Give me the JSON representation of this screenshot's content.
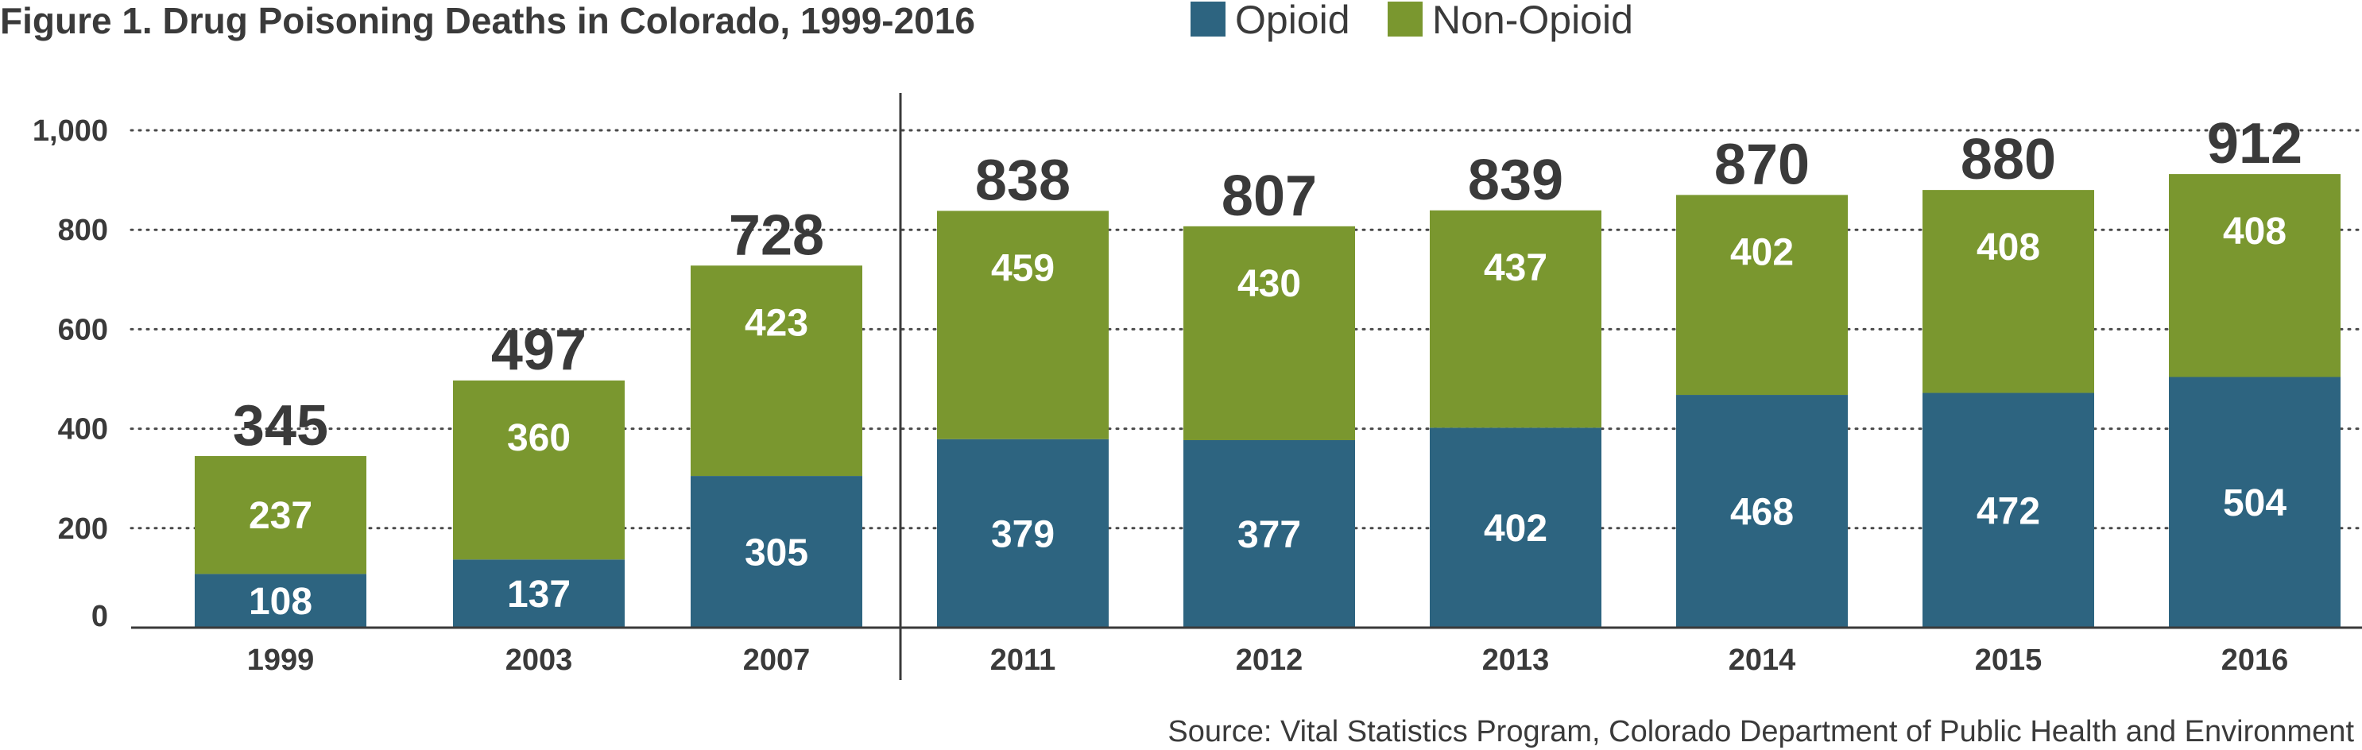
{
  "title": "Figure 1. Drug Poisoning Deaths in Colorado, 1999-2016",
  "source": "Source: Vital Statistics Program, Colorado Department of Public Health and Environment",
  "colors": {
    "opioid": "#2d6480",
    "non_opioid": "#7a972f",
    "text": "#3a3a3a"
  },
  "chart_data": {
    "type": "bar",
    "stacked": true,
    "title": "Figure 1. Drug Poisoning Deaths in Colorado, 1999-2016",
    "categories": [
      "1999",
      "2003",
      "2007",
      "2011",
      "2012",
      "2013",
      "2014",
      "2015",
      "2016"
    ],
    "series": [
      {
        "name": "Opioid",
        "values": [
          108,
          137,
          305,
          379,
          377,
          402,
          468,
          472,
          504
        ]
      },
      {
        "name": "Non-Opioid",
        "values": [
          237,
          360,
          423,
          459,
          430,
          437,
          402,
          408,
          408
        ]
      }
    ],
    "totals": [
      345,
      497,
      728,
      838,
      807,
      839,
      870,
      880,
      912
    ],
    "yticks": [
      "0",
      "200",
      "400",
      "600",
      "800",
      "1,000"
    ],
    "ylim": [
      0,
      1000
    ],
    "grid": "horizontal dotted",
    "legend_position": "top"
  }
}
